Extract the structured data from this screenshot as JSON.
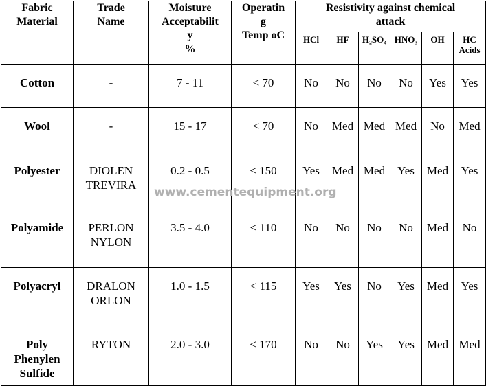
{
  "table": {
    "header": {
      "fabric": [
        "Fabric",
        "Material"
      ],
      "trade": [
        "Trade",
        "Name"
      ],
      "moisture": [
        "Moisture",
        "Acceptabilit",
        "y",
        "%"
      ],
      "temp": [
        "Operatin",
        "g",
        "Temp oC"
      ],
      "resistivity": [
        "Resistivity against chemical",
        "attack"
      ],
      "chemicals": [
        [
          "HCl"
        ],
        [
          "HF"
        ],
        [
          "H₂SO₄"
        ],
        [
          "HNO₃"
        ],
        [
          "OH"
        ],
        [
          "HC",
          "Acids"
        ]
      ]
    },
    "rows": [
      {
        "fabric": [
          "Cotton"
        ],
        "trade": [
          "-"
        ],
        "moisture": "7 - 11",
        "temp": "< 70",
        "resist": [
          "No",
          "No",
          "No",
          "No",
          "Yes",
          "Yes"
        ]
      },
      {
        "fabric": [
          "Wool"
        ],
        "trade": [
          "-"
        ],
        "moisture": "15 - 17",
        "temp": "< 70",
        "resist": [
          "No",
          "Med",
          "Med",
          "Med",
          "No",
          "Med"
        ]
      },
      {
        "fabric": [
          "Polyester"
        ],
        "trade": [
          "DIOLEN",
          "TREVIRA"
        ],
        "moisture": "0.2 - 0.5",
        "temp": "< 150",
        "resist": [
          "Yes",
          "Med",
          "Med",
          "Yes",
          "Med",
          "Yes"
        ]
      },
      {
        "fabric": [
          "Polyamide"
        ],
        "trade": [
          "PERLON",
          "NYLON"
        ],
        "moisture": "3.5 - 4.0",
        "temp": "< 110",
        "resist": [
          "No",
          "No",
          "No",
          "No",
          "Med",
          "No"
        ]
      },
      {
        "fabric": [
          "Polyacryl"
        ],
        "trade": [
          "DRALON",
          "ORLON"
        ],
        "moisture": "1.0 - 1.5",
        "temp": "< 115",
        "resist": [
          "Yes",
          "Yes",
          "No",
          "Yes",
          "Med",
          "Yes"
        ]
      },
      {
        "fabric": [
          "Poly",
          "Phenylen",
          "Sulfide"
        ],
        "trade": [
          "RYTON"
        ],
        "moisture": "2.0 - 3.0",
        "temp": "< 170",
        "resist": [
          "No",
          "No",
          "Yes",
          "Yes",
          "Med",
          "Med"
        ]
      }
    ]
  },
  "watermark": "www.cementequipment.org"
}
